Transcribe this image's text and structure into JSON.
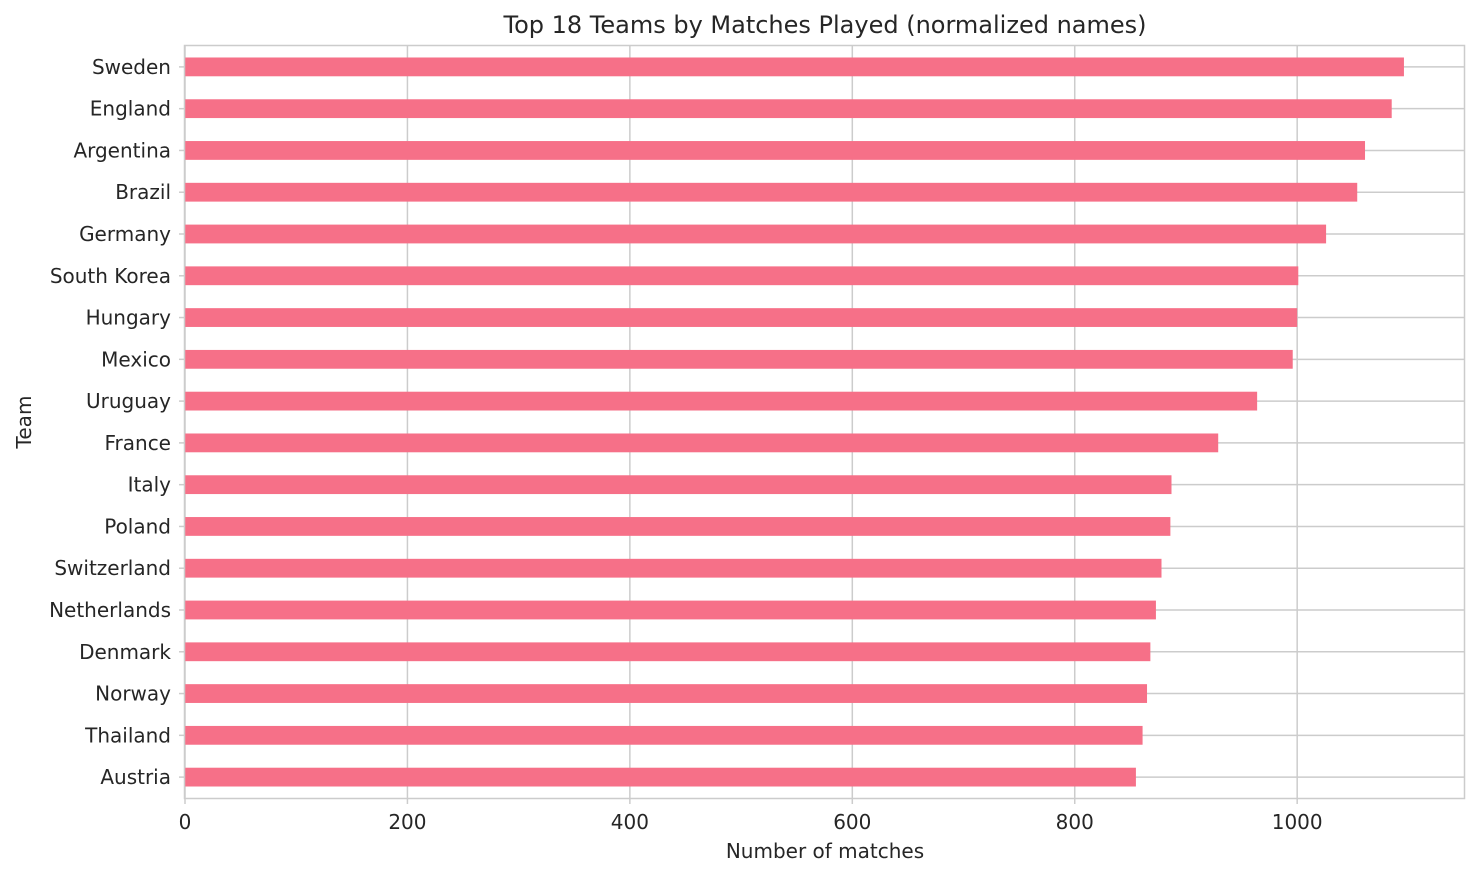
{
  "chart_data": {
    "type": "bar",
    "orientation": "horizontal",
    "title": "Top 18 Teams by Matches Played (normalized names)",
    "xlabel": "Number of matches",
    "ylabel": "Team",
    "xlim": [
      0,
      1150
    ],
    "xticks": [
      0,
      200,
      400,
      600,
      800,
      1000
    ],
    "grid": true,
    "legend": "none",
    "bar_color": "#f67088",
    "categories": [
      "Sweden",
      "England",
      "Argentina",
      "Brazil",
      "Germany",
      "South Korea",
      "Hungary",
      "Mexico",
      "Uruguay",
      "France",
      "Italy",
      "Poland",
      "Switzerland",
      "Netherlands",
      "Denmark",
      "Norway",
      "Thailand",
      "Austria"
    ],
    "values": [
      1096,
      1085,
      1061,
      1054,
      1026,
      1001,
      1000,
      996,
      964,
      929,
      887,
      886,
      878,
      873,
      868,
      865,
      861,
      855
    ]
  }
}
